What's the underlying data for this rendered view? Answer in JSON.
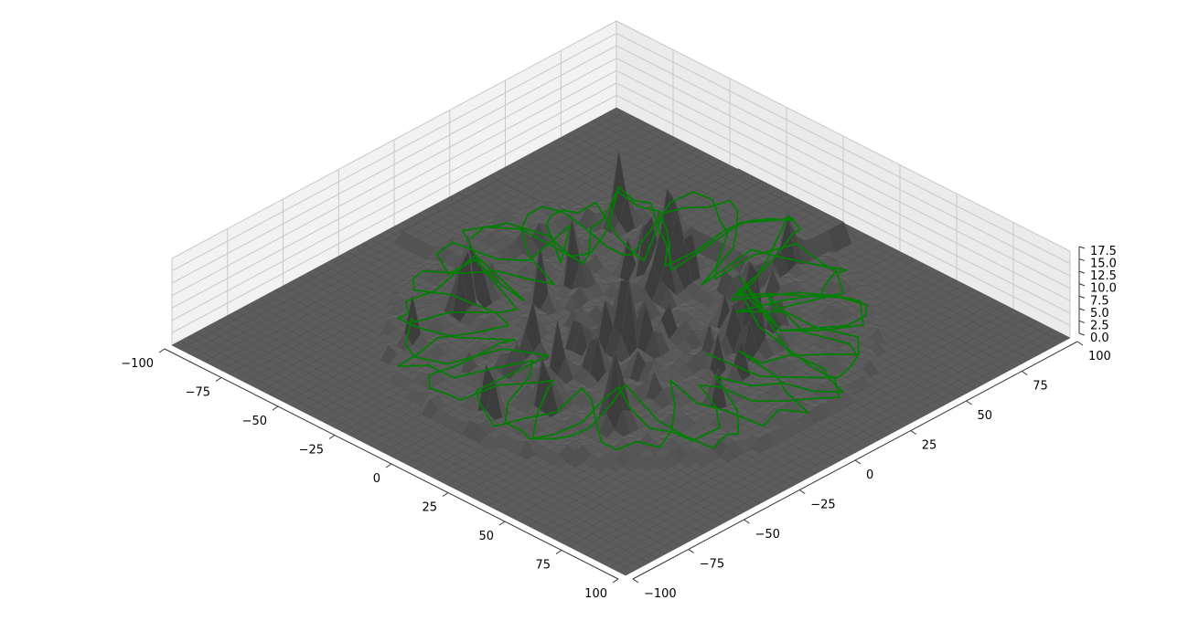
{
  "chart_data": {
    "type": "surface3d",
    "title": "",
    "xlabel": "",
    "ylabel": "",
    "zlabel": "",
    "xlim": [
      -100,
      100
    ],
    "ylim": [
      -100,
      100
    ],
    "zlim": [
      0,
      17.5
    ],
    "x_ticks": [
      "−100",
      "−75",
      "−50",
      "−25",
      "0",
      "25",
      "50",
      "75",
      "100"
    ],
    "y_ticks": [
      "−100",
      "−75",
      "−50",
      "−25",
      "0",
      "25",
      "50",
      "75",
      "100"
    ],
    "z_ticks": [
      "0.0",
      "2.5",
      "5.0",
      "7.5",
      "10.0",
      "12.5",
      "15.0",
      "17.5"
    ],
    "x_tick_values": [
      -100,
      -75,
      -50,
      -25,
      0,
      25,
      50,
      75,
      100
    ],
    "y_tick_values": [
      -100,
      -75,
      -50,
      -25,
      0,
      25,
      50,
      75,
      100
    ],
    "z_tick_values": [
      0,
      2.5,
      5,
      7.5,
      10,
      12.5,
      15,
      17.5
    ],
    "grid": true,
    "surface_color": "#5a5a5a",
    "path_color": "#008000",
    "pane_color": "#f2f2f2",
    "seed": 7
  }
}
